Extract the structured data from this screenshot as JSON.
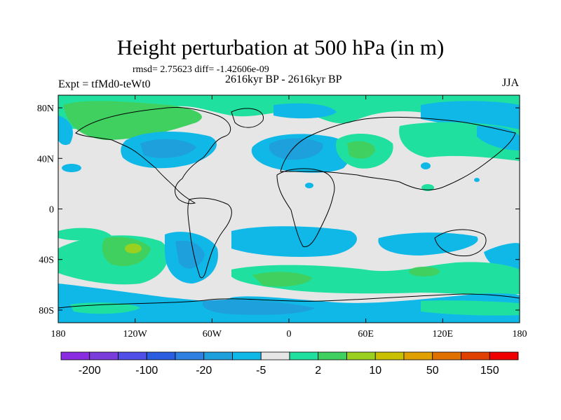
{
  "header": {
    "title": "Height perturbation at 500 hPa (in m)",
    "stats": "rmsd= 2.75623 diff= -1.42606e-09",
    "period": "2616kyr BP - 2616kyr BP",
    "experiment": "Expt = tfMd0-teWt0",
    "season": "JJA"
  },
  "axes": {
    "x_ticks": [
      {
        "lon": -180,
        "label": "180"
      },
      {
        "lon": -120,
        "label": "120W"
      },
      {
        "lon": -60,
        "label": "60W"
      },
      {
        "lon": 0,
        "label": "0"
      },
      {
        "lon": 60,
        "label": "60E"
      },
      {
        "lon": 120,
        "label": "120E"
      },
      {
        "lon": 180,
        "label": "180"
      }
    ],
    "y_ticks": [
      {
        "lat": 80,
        "label": "80N"
      },
      {
        "lat": 40,
        "label": "40N"
      },
      {
        "lat": 0,
        "label": "0"
      },
      {
        "lat": -40,
        "label": "40S"
      },
      {
        "lat": -80,
        "label": "80S"
      }
    ]
  },
  "colorbar": {
    "colors": [
      "#8a2be2",
      "#7a3ddc",
      "#5050e8",
      "#2a5ddf",
      "#2f80e0",
      "#1ea0dc",
      "#10b8e8",
      "#e6e6e6",
      "#20e0a0",
      "#40d060",
      "#9ad020",
      "#c8c000",
      "#e0a000",
      "#e07000",
      "#e04000",
      "#f00000"
    ],
    "labels": [
      {
        "after_box": 1,
        "text": "-200"
      },
      {
        "after_box": 3,
        "text": "-100"
      },
      {
        "after_box": 5,
        "text": "-20"
      },
      {
        "after_box": 7,
        "text": "-5"
      },
      {
        "after_box": 9,
        "text": "2"
      },
      {
        "after_box": 11,
        "text": "10"
      },
      {
        "after_box": 13,
        "text": "50"
      },
      {
        "after_box": 15,
        "text": "150"
      }
    ]
  }
}
